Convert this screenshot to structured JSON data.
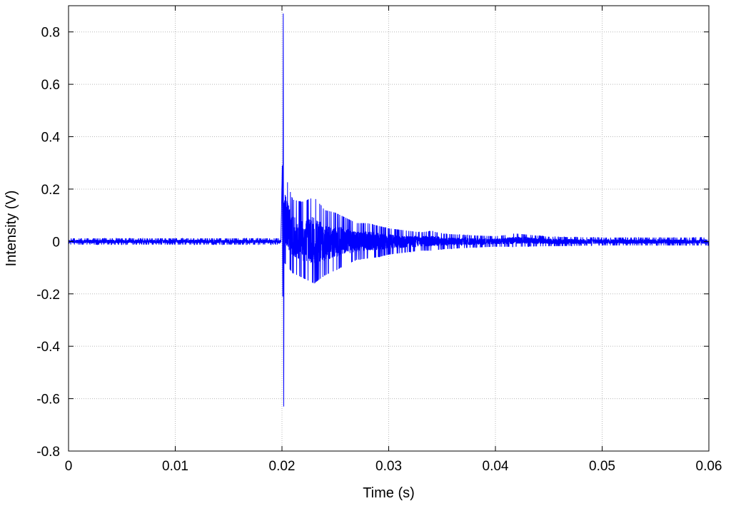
{
  "chart_data": {
    "type": "line",
    "title": "",
    "xlabel": "Time (s)",
    "ylabel": "Intensity (V)",
    "xlim": [
      0,
      0.06
    ],
    "ylim": [
      -0.8,
      0.9
    ],
    "xticks": [
      0,
      0.01,
      0.02,
      0.03,
      0.04,
      0.05,
      0.06
    ],
    "xtick_labels": [
      "0",
      "0.01",
      "0.02",
      "0.03",
      "0.04",
      "0.05",
      "0.06"
    ],
    "yticks": [
      -0.8,
      -0.6,
      -0.4,
      -0.2,
      0,
      0.2,
      0.4,
      0.6,
      0.8
    ],
    "ytick_labels": [
      "-0.8",
      "-0.6",
      "-0.4",
      "-0.2",
      "0",
      "0.2",
      "0.4",
      "0.6",
      "0.8"
    ],
    "grid": true,
    "legend": "none",
    "series": [
      {
        "color": "#0000ff",
        "description_points": {
          "x": [
            0,
            0.0199,
            0.02003,
            0.02007,
            0.02012,
            0.02016,
            0.0202,
            0.021,
            0.022,
            0.023,
            0.024,
            0.025,
            0.026,
            0.027,
            0.028,
            0.029,
            0.03,
            0.031,
            0.032,
            0.033,
            0.034,
            0.035,
            0.037,
            0.04,
            0.042,
            0.045,
            0.05,
            0.055,
            0.06
          ],
          "y_max": [
            0.012,
            0.012,
            0.29,
            -0.21,
            0.87,
            -0.63,
            0.27,
            0.16,
            0.15,
            0.17,
            0.12,
            0.11,
            0.09,
            0.07,
            0.07,
            0.06,
            0.05,
            0.045,
            0.04,
            0.035,
            0.04,
            0.03,
            0.025,
            0.02,
            0.03,
            0.018,
            0.015,
            0.015,
            0.015
          ],
          "y_min": [
            -0.012,
            -0.012,
            0.29,
            -0.21,
            0.87,
            -0.63,
            -0.08,
            -0.12,
            -0.14,
            -0.16,
            -0.13,
            -0.11,
            -0.09,
            -0.07,
            -0.065,
            -0.06,
            -0.05,
            -0.045,
            -0.04,
            -0.035,
            -0.035,
            -0.03,
            -0.025,
            -0.02,
            -0.02,
            -0.018,
            -0.015,
            -0.015,
            -0.015
          ]
        }
      }
    ]
  }
}
